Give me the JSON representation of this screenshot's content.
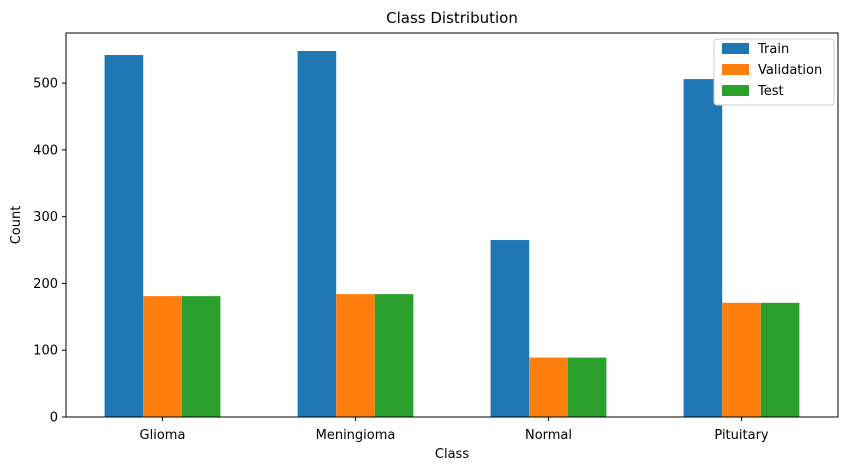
{
  "chart_data": {
    "type": "bar",
    "title": "Class Distribution",
    "xlabel": "Class",
    "ylabel": "Count",
    "categories": [
      "Glioma",
      "Meningioma",
      "Normal",
      "Pituitary"
    ],
    "series": [
      {
        "name": "Train",
        "values": [
          542,
          548,
          265,
          506
        ],
        "color": "#1f77b4"
      },
      {
        "name": "Validation",
        "values": [
          181,
          184,
          89,
          171
        ],
        "color": "#ff7f0e"
      },
      {
        "name": "Test",
        "values": [
          181,
          184,
          89,
          171
        ],
        "color": "#2ca02c"
      }
    ],
    "ylim": [
      0,
      575
    ],
    "yticks": [
      0,
      100,
      200,
      300,
      400,
      500
    ],
    "grid": false,
    "legend_position": "top-right"
  }
}
